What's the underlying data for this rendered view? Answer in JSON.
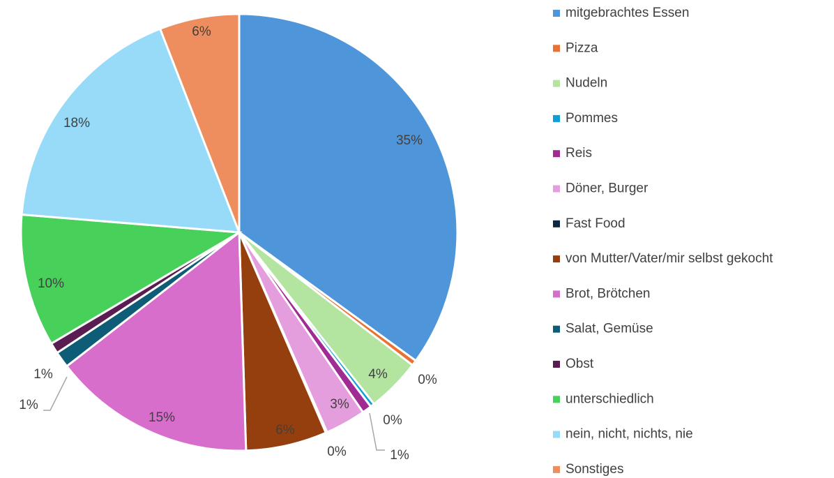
{
  "chart_data": {
    "type": "pie",
    "categories": [
      "mitgebrachtes Essen",
      "Pizza",
      "Nudeln",
      "Pommes",
      "Reis",
      "Döner, Burger",
      "Fast Food",
      "von Mutter/Vater/mir selbst gekocht",
      "Brot, Brötchen",
      "Salat, Gemüse",
      "Obst",
      "unterschiedlich",
      "nein, nicht, nichts, nie",
      "Sonstiges"
    ],
    "values": [
      35,
      0.4,
      4,
      0.3,
      0.7,
      3,
      0.1,
      6,
      15,
      1.2,
      0.8,
      9.8,
      17.8,
      5.9
    ],
    "value_labels": [
      "35%",
      "0%",
      "4%",
      "0%",
      "1%",
      "3%",
      "0%",
      "6%",
      "15%",
      "1%",
      "1%",
      "10%",
      "18%",
      "6%"
    ],
    "colors": [
      "#4e95d9",
      "#e97132",
      "#b3e5a1",
      "#0f9ed5",
      "#a02b93",
      "#e49edd",
      "#0e2841",
      "#963f0e",
      "#d86ecc",
      "#0f5c77",
      "#5a1d51",
      "#47d15a",
      "#97dbf8",
      "#ee8d5d"
    ],
    "legend": "right"
  }
}
